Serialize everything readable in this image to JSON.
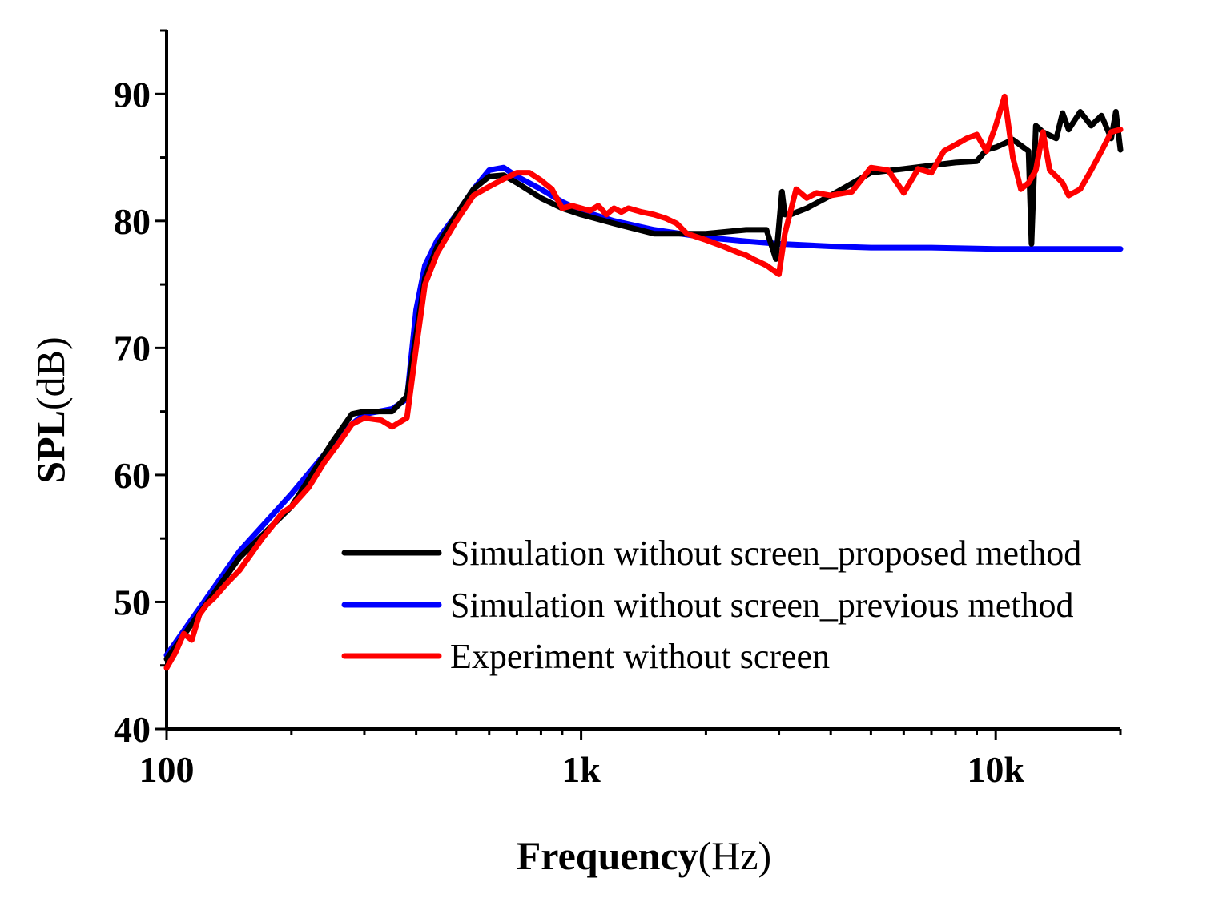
{
  "chart_data": {
    "type": "line",
    "title": "",
    "xlabel": {
      "bold": "Frequency",
      "normal": "(Hz)"
    },
    "ylabel": {
      "bold": "SPL",
      "normal": "(dB)"
    },
    "xscale": "log",
    "xlim": [
      100,
      20000
    ],
    "ylim": [
      40,
      95
    ],
    "x_tick_labels": [
      {
        "value": 100,
        "label": "100"
      },
      {
        "value": 1000,
        "label": "1k"
      },
      {
        "value": 10000,
        "label": "10k"
      }
    ],
    "y_tick_labels": [
      {
        "value": 40,
        "label": "40"
      },
      {
        "value": 50,
        "label": "50"
      },
      {
        "value": 60,
        "label": "60"
      },
      {
        "value": 70,
        "label": "70"
      },
      {
        "value": 80,
        "label": "80"
      },
      {
        "value": 90,
        "label": "90"
      }
    ],
    "legend_position": "bottom-right",
    "series": [
      {
        "name": "Simulation without screen_proposed method",
        "color": "#000000",
        "x": [
          100,
          150,
          200,
          250,
          280,
          300,
          350,
          380,
          400,
          420,
          450,
          500,
          550,
          600,
          650,
          700,
          800,
          900,
          1000,
          1200,
          1500,
          2000,
          2500,
          2800,
          2950,
          3050,
          3100,
          3200,
          3500,
          4000,
          5000,
          6000,
          8000,
          9000,
          9500,
          10000,
          11000,
          12000,
          12200,
          12500,
          13000,
          14000,
          14500,
          15000,
          16000,
          17000,
          18000,
          19000,
          19500,
          20000
        ],
        "y": [
          45.5,
          53.5,
          57.5,
          62.5,
          64.8,
          65.0,
          65.0,
          66.2,
          71.0,
          75.5,
          78.0,
          80.5,
          82.5,
          83.5,
          83.6,
          83.0,
          81.8,
          81.0,
          80.5,
          79.8,
          79.0,
          79.0,
          79.3,
          79.3,
          77.0,
          82.3,
          80.5,
          80.5,
          81.0,
          82.0,
          83.8,
          84.1,
          84.6,
          84.7,
          85.6,
          85.8,
          86.4,
          85.5,
          78.2,
          87.5,
          87.0,
          86.5,
          88.5,
          87.2,
          88.6,
          87.5,
          88.3,
          86.5,
          88.6,
          85.6
        ]
      },
      {
        "name": "Simulation without screen_previous method",
        "color": "#0000ff",
        "x": [
          100,
          150,
          200,
          250,
          280,
          300,
          350,
          380,
          400,
          420,
          450,
          500,
          550,
          600,
          650,
          700,
          800,
          900,
          1000,
          1200,
          1500,
          2000,
          2500,
          3000,
          4000,
          5000,
          7000,
          10000,
          15000,
          20000
        ],
        "y": [
          45.8,
          54.0,
          58.5,
          62.3,
          64.0,
          64.8,
          65.2,
          66.0,
          73.0,
          76.5,
          78.5,
          80.5,
          82.5,
          84.0,
          84.2,
          83.5,
          82.5,
          81.5,
          80.8,
          80.0,
          79.3,
          78.7,
          78.4,
          78.2,
          78.0,
          77.9,
          77.9,
          77.8,
          77.8,
          77.8
        ]
      },
      {
        "name": "Experiment without screen",
        "color": "#ff0000",
        "x": [
          100,
          105,
          110,
          115,
          120,
          125,
          130,
          140,
          150,
          160,
          170,
          180,
          190,
          200,
          220,
          240,
          260,
          280,
          300,
          330,
          350,
          380,
          400,
          420,
          450,
          500,
          550,
          600,
          650,
          700,
          750,
          800,
          850,
          900,
          950,
          1000,
          1050,
          1100,
          1150,
          1200,
          1250,
          1300,
          1400,
          1500,
          1600,
          1700,
          1800,
          2000,
          2200,
          2400,
          2500,
          2600,
          2800,
          3000,
          3100,
          3300,
          3500,
          3700,
          4000,
          4500,
          5000,
          5500,
          6000,
          6500,
          7000,
          7500,
          8000,
          8500,
          9000,
          9500,
          10000,
          10500,
          11000,
          11500,
          12000,
          12500,
          13000,
          13500,
          14000,
          14500,
          15000,
          16000,
          17000,
          18000,
          19000,
          20000
        ],
        "y": [
          44.8,
          46.0,
          47.5,
          47.0,
          49.0,
          49.8,
          50.3,
          51.5,
          52.5,
          53.8,
          55.0,
          56.0,
          57.0,
          57.5,
          59.0,
          61.0,
          62.5,
          64.0,
          64.5,
          64.3,
          63.8,
          64.5,
          70.0,
          75.0,
          77.5,
          80.0,
          82.0,
          82.7,
          83.3,
          83.8,
          83.8,
          83.2,
          82.5,
          81.0,
          81.2,
          81.0,
          80.8,
          81.2,
          80.5,
          81.0,
          80.7,
          81.0,
          80.7,
          80.5,
          80.2,
          79.8,
          79.0,
          78.5,
          78.0,
          77.5,
          77.3,
          77.0,
          76.5,
          75.8,
          79.0,
          82.5,
          81.8,
          82.2,
          82.0,
          82.3,
          84.2,
          84.0,
          82.2,
          84.1,
          83.8,
          85.5,
          86.0,
          86.5,
          86.8,
          85.5,
          87.5,
          89.8,
          85.0,
          82.5,
          83.0,
          84.0,
          87.0,
          84.0,
          83.5,
          83.0,
          82.0,
          82.5,
          84.0,
          85.5,
          87.0,
          87.2
        ]
      }
    ]
  }
}
